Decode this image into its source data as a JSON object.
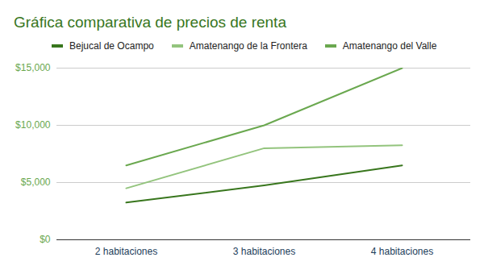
{
  "chart_data": {
    "type": "line",
    "title": "Gráfica comparativa de precios de renta",
    "categories": [
      "2 habitaciones",
      "3 habitaciones",
      "4 habitaciones"
    ],
    "series": [
      {
        "name": "Bejucal de Ocampo",
        "color": "#38761d",
        "values": [
          3250,
          4750,
          6500
        ]
      },
      {
        "name": "Amatenango de la Frontera",
        "color": "#93c47d",
        "values": [
          4500,
          8000,
          8250
        ]
      },
      {
        "name": "Amatenango del Valle",
        "color": "#6aa84f",
        "values": [
          6500,
          10000,
          15000
        ]
      }
    ],
    "ylim": [
      0,
      15000
    ],
    "yticks": [
      {
        "value": 0,
        "label": "$0"
      },
      {
        "value": 5000,
        "label": "$5,000"
      },
      {
        "value": 10000,
        "label": "$10,000"
      },
      {
        "value": 15000,
        "label": "$15,000"
      }
    ],
    "grid": true,
    "legend": "top"
  }
}
